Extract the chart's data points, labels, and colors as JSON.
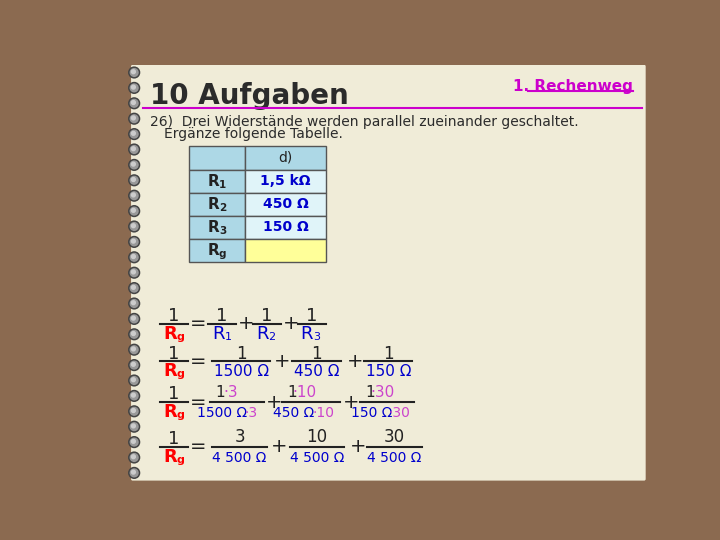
{
  "bg_outer": "#8B6A50",
  "bg_page": "#F0ECD8",
  "title_text": "10 Aufgaben",
  "title_color": "#2B2B2B",
  "subtitle_color": "#cc00cc",
  "subtitle_text": "1. Rechenweg",
  "desc_line1": "26)  Drei Widerstände werden parallel zueinander geschaltet.",
  "desc_line2": "       Ergänze folgende Tabelle.",
  "table_header_bg": "#ADD8E6",
  "table_cell_bg": "#E0F4F9",
  "table_yellow_bg": "#FFFF99",
  "table_text_color": "#0000CC",
  "table_label_color": "#222222",
  "divider_color": "#cc00cc",
  "formula_blue": "#0000CC",
  "formula_red": "#FF0000",
  "formula_magenta": "#cc44cc",
  "formula_black": "#222222"
}
